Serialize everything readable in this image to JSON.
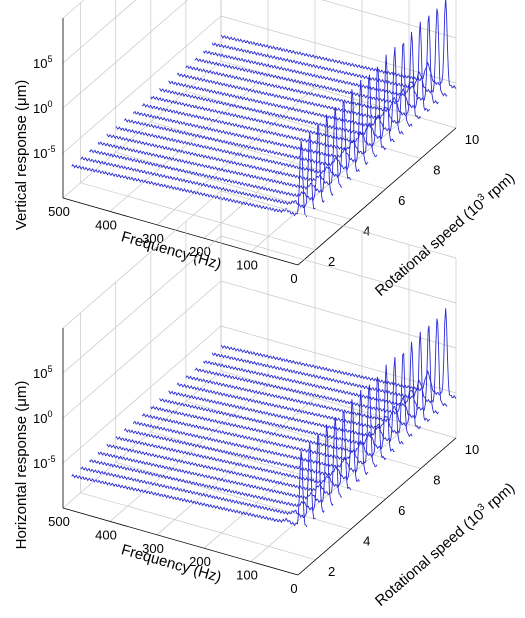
{
  "figure": {
    "panels_count": 2
  },
  "chart_data": [
    {
      "type": "line",
      "subtype": "waterfall-3d",
      "title": "",
      "xlabel": "Frequency (Hz)",
      "ylabel": "Rotational speed (10³ rpm)",
      "ylabel_base": "Rotational speed (10",
      "ylabel_exp": "3",
      "ylabel_tail": " rpm)",
      "zlabel": "Vertical response (μm)",
      "xlim": [
        0,
        500
      ],
      "ylim": [
        1,
        10
      ],
      "zscale": "log",
      "zlim_exponent": [
        -10,
        10
      ],
      "x_ticks": [
        "0",
        "100",
        "200",
        "300",
        "400",
        "500"
      ],
      "y_ticks": [
        "2",
        "4",
        "6",
        "8",
        "10"
      ],
      "z_ticks": [
        {
          "base": "10",
          "exp": "-5"
        },
        {
          "base": "10",
          "exp": "0"
        },
        {
          "base": "10",
          "exp": "5"
        }
      ],
      "grid": true,
      "line_color": "#2b2bd6",
      "rotational_speeds_krpm": [
        1.5,
        2,
        2.5,
        3,
        3.5,
        4,
        4.5,
        5,
        5.5,
        6,
        6.5,
        7,
        7.5,
        8,
        8.5,
        9,
        9.5,
        10
      ],
      "series_profile": {
        "base_log10_response": -5.5,
        "decay_per_100hz": 0.35,
        "resonance_frequency_hz": 10,
        "resonance_peak_log10": 3,
        "second_peak_frequency_hz": 40,
        "second_peak_log10": 0
      }
    },
    {
      "type": "line",
      "subtype": "waterfall-3d",
      "title": "",
      "xlabel": "Frequency (Hz)",
      "ylabel": "Rotational speed (10³ rpm)",
      "ylabel_base": "Rotational speed (10",
      "ylabel_exp": "3",
      "ylabel_tail": " rpm)",
      "zlabel": "Horizontal response (μm)",
      "xlim": [
        0,
        500
      ],
      "ylim": [
        1,
        10
      ],
      "zscale": "log",
      "zlim_exponent": [
        -10,
        10
      ],
      "x_ticks": [
        "0",
        "100",
        "200",
        "300",
        "400",
        "500"
      ],
      "y_ticks": [
        "2",
        "4",
        "6",
        "8",
        "10"
      ],
      "z_ticks": [
        {
          "base": "10",
          "exp": "-5"
        },
        {
          "base": "10",
          "exp": "0"
        },
        {
          "base": "10",
          "exp": "5"
        }
      ],
      "grid": true,
      "line_color": "#2b2bd6",
      "rotational_speeds_krpm": [
        1.5,
        2,
        2.5,
        3,
        3.5,
        4,
        4.5,
        5,
        5.5,
        6,
        6.5,
        7,
        7.5,
        8,
        8.5,
        9,
        9.5,
        10
      ],
      "series_profile": {
        "base_log10_response": -5.5,
        "decay_per_100hz": 0.35,
        "resonance_frequency_hz": 10,
        "resonance_peak_log10": 3,
        "second_peak_frequency_hz": 40,
        "second_peak_log10": 0.5
      }
    }
  ]
}
